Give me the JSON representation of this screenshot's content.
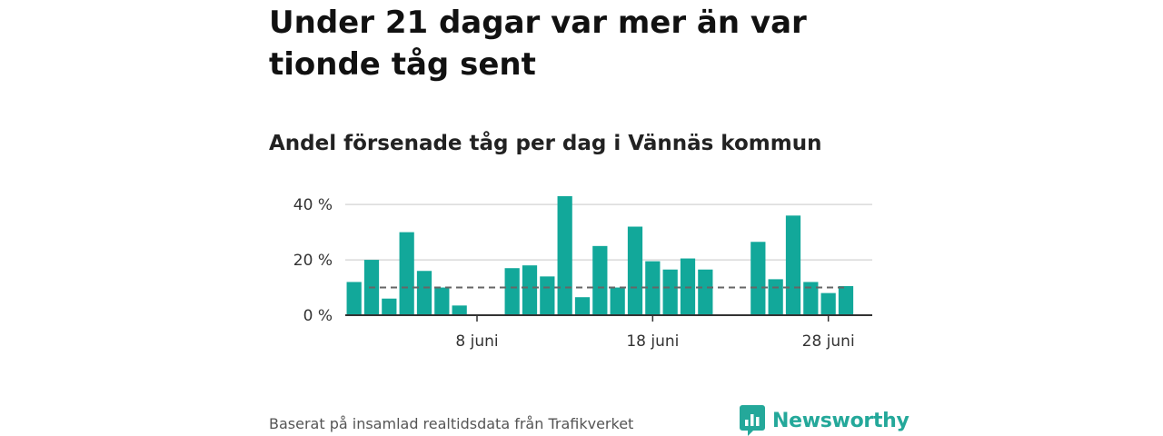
{
  "title": "Under 21 dagar var mer än var tionde tåg sent",
  "subtitle": "Andel försenade tåg per dag i Vännäs kommun",
  "source": "Baserat på insamlad realtidsdata från Trafikverket",
  "brand": {
    "name": "Newsworthy",
    "icon": "newsworthy-logo-icon"
  },
  "colors": {
    "bar": "#12a89a",
    "reference_line": "#666666",
    "grid": "#d9d9d9",
    "axis": "#333333",
    "brand": "#24a89a"
  },
  "chart_data": {
    "type": "bar",
    "title": "",
    "xlabel": "",
    "ylabel": "",
    "x": [
      1,
      2,
      3,
      4,
      5,
      6,
      7,
      8,
      9,
      10,
      11,
      12,
      13,
      14,
      15,
      16,
      17,
      18,
      19,
      20,
      21,
      22,
      23,
      24,
      25,
      26,
      27,
      28,
      29,
      30
    ],
    "values": [
      12,
      20,
      6,
      30,
      16,
      10,
      3.5,
      null,
      null,
      17,
      18,
      14,
      43,
      6.5,
      25,
      10,
      32,
      19.5,
      16.5,
      20.5,
      16.5,
      null,
      null,
      26.5,
      13,
      36,
      12,
      8,
      10.5,
      null
    ],
    "reference_line": {
      "value": 10,
      "style": "dashed"
    },
    "ylim": [
      0,
      43
    ],
    "y_ticks": [
      0,
      20,
      40
    ],
    "y_tick_labels": [
      "0 %",
      "20 %",
      "40 %"
    ],
    "x_ticks": [
      8,
      18,
      28
    ],
    "x_tick_labels": [
      "8 juni",
      "18 juni",
      "28 juni"
    ],
    "grid": true,
    "legend": "none"
  }
}
